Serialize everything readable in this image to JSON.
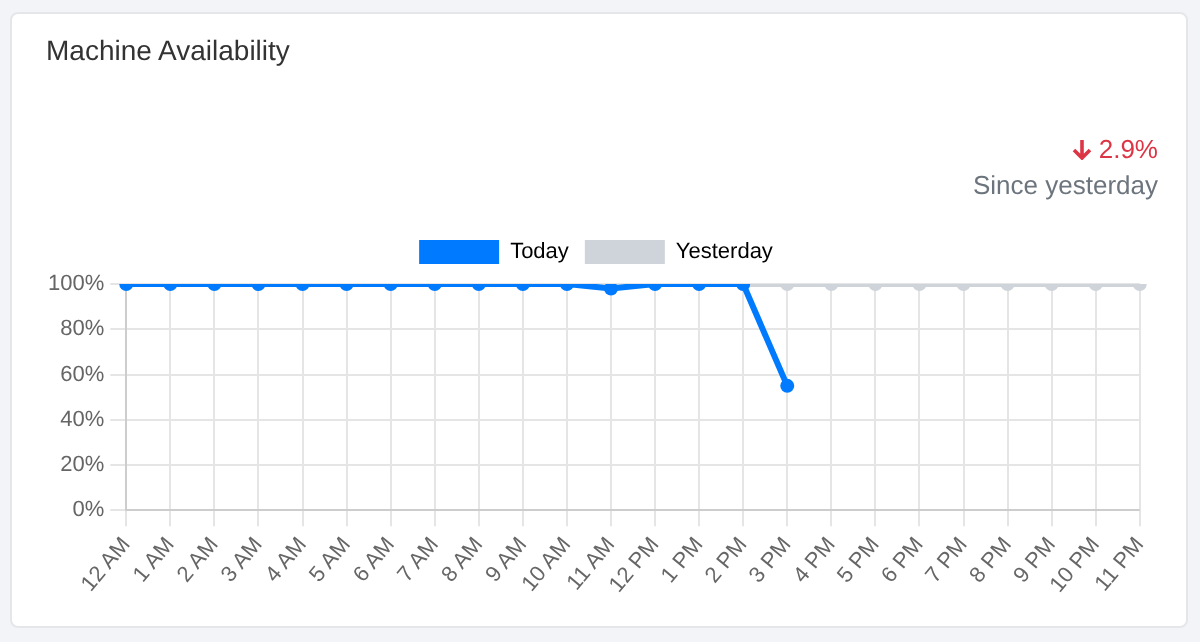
{
  "chart_data": {
    "type": "line",
    "title": "Machine Availability",
    "annotations": [
      "2.9%",
      "Since yesterday"
    ],
    "categories": [
      "12 AM",
      "1 AM",
      "2 AM",
      "3 AM",
      "4 AM",
      "5 AM",
      "6 AM",
      "7 AM",
      "8 AM",
      "9 AM",
      "10 AM",
      "11 AM",
      "12 PM",
      "1 PM",
      "2 PM",
      "3 PM",
      "4 PM",
      "5 PM",
      "6 PM",
      "7 PM",
      "8 PM",
      "9 PM",
      "10 PM",
      "11 PM"
    ],
    "series": [
      {
        "name": "Today",
        "color": "#007bff",
        "values": [
          100,
          100,
          100,
          100,
          100,
          100,
          100,
          100,
          100,
          100,
          100,
          98,
          100,
          100,
          100,
          55,
          null,
          null,
          null,
          null,
          null,
          null,
          null,
          null
        ]
      },
      {
        "name": "Yesterday",
        "color": "#ced4da",
        "values": [
          null,
          null,
          null,
          null,
          null,
          null,
          null,
          null,
          null,
          null,
          null,
          null,
          null,
          null,
          100,
          100,
          100,
          100,
          100,
          100,
          100,
          100,
          100,
          100
        ]
      }
    ],
    "ylim": [
      0,
      100
    ],
    "yticks": [
      {
        "value": 0,
        "label": "0%"
      },
      {
        "value": 20,
        "label": "20%"
      },
      {
        "value": 40,
        "label": "40%"
      },
      {
        "value": 60,
        "label": "60%"
      },
      {
        "value": 80,
        "label": "80%"
      },
      {
        "value": 100,
        "label": "100%"
      }
    ],
    "grid": true,
    "legend": "top",
    "marker": "circle",
    "line_style": "solid"
  }
}
